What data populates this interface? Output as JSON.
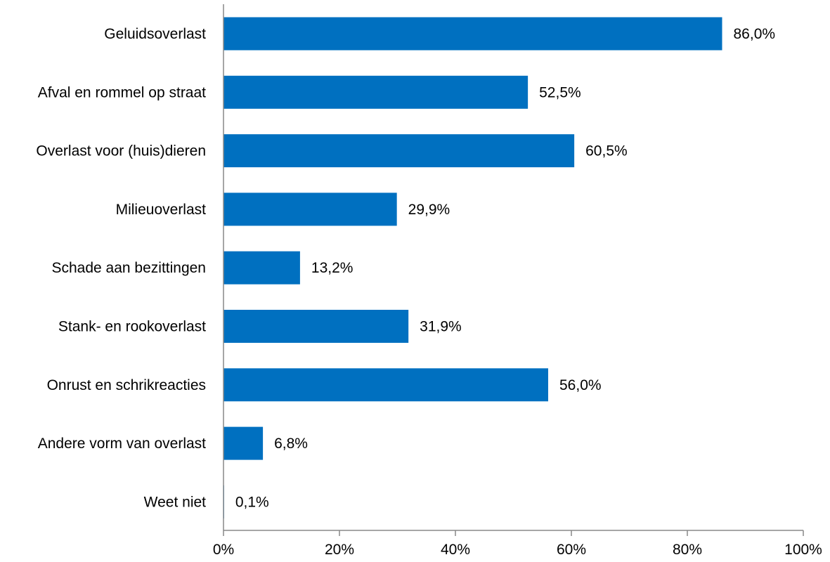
{
  "colors": {
    "bar": "#0070C0",
    "axis": "#888888",
    "text": "#000000",
    "background": "#FFFFFF"
  },
  "chart_data": {
    "type": "bar",
    "orientation": "horizontal",
    "title": "",
    "xlabel": "",
    "ylabel": "",
    "xlim": [
      0,
      100
    ],
    "x_ticks": [
      0,
      20,
      40,
      60,
      80,
      100
    ],
    "x_tick_labels": [
      "0%",
      "20%",
      "40%",
      "60%",
      "80%",
      "100%"
    ],
    "grid": false,
    "legend": "none",
    "categories": [
      "Geluidsoverlast",
      "Afval en rommel op straat",
      "Overlast voor (huis)dieren",
      "Milieuoverlast",
      "Schade aan bezittingen",
      "Stank- en rookoverlast",
      "Onrust en schrikreacties",
      "Andere vorm van overlast",
      "Weet niet"
    ],
    "values": [
      86.0,
      52.5,
      60.5,
      29.9,
      13.2,
      31.9,
      56.0,
      6.8,
      0.1
    ],
    "data_labels": [
      "86,0%",
      "52,5%",
      "60,5%",
      "29,9%",
      "13,2%",
      "31,9%",
      "56,0%",
      "6,8%",
      "0,1%"
    ]
  }
}
